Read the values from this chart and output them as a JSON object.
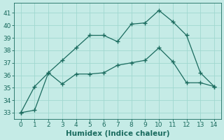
{
  "x": [
    0,
    1,
    2,
    3,
    4,
    5,
    6,
    7,
    8,
    9,
    10,
    11,
    12,
    13,
    14
  ],
  "line1": [
    33.0,
    33.2,
    36.2,
    37.2,
    38.2,
    39.2,
    39.2,
    38.7,
    40.1,
    40.2,
    41.2,
    40.3,
    39.2,
    36.2,
    35.1
  ],
  "line2": [
    33.0,
    35.1,
    36.2,
    35.3,
    36.1,
    36.1,
    36.2,
    36.8,
    37.0,
    37.2,
    38.2,
    37.1,
    35.4,
    35.4,
    35.1
  ],
  "line_color": "#1a6b5e",
  "bg_color": "#c5ebe6",
  "grid_color": "#a0d8d0",
  "xlabel": "Humidex (Indice chaleur)",
  "ylim": [
    32.5,
    41.8
  ],
  "xlim": [
    -0.5,
    14.5
  ],
  "yticks": [
    33,
    34,
    35,
    36,
    37,
    38,
    39,
    40,
    41
  ],
  "xticks": [
    0,
    1,
    2,
    3,
    4,
    5,
    6,
    7,
    8,
    9,
    10,
    11,
    12,
    13,
    14
  ],
  "fontsize_label": 7.5,
  "fontsize_tick": 6.5,
  "marker": "+",
  "markersize": 4,
  "markeredgewidth": 1.0,
  "linewidth1": 0.9,
  "linewidth2": 0.9
}
